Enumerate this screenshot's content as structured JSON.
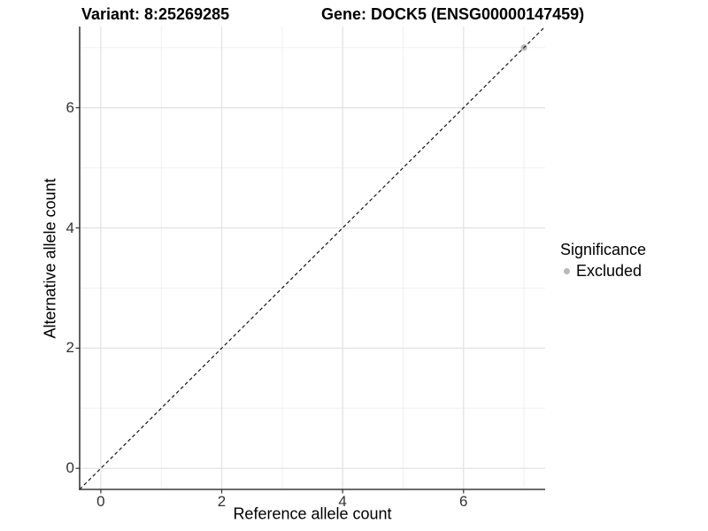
{
  "figure": {
    "kind": "scatter-plot-figure"
  },
  "chart_data": {
    "type": "scatter",
    "title_left": "Variant: 8:25269285",
    "title_right": "Gene: DOCK5 (ENSG00000147459)",
    "xlabel": "Reference allele count",
    "ylabel": "Alternative allele count",
    "xlim": [
      -0.35,
      7.35
    ],
    "ylim": [
      -0.35,
      7.35
    ],
    "x_major_ticks": [
      0,
      2,
      4,
      6
    ],
    "y_major_ticks": [
      0,
      2,
      4,
      6
    ],
    "x_minor_ticks": [
      1,
      3,
      5,
      7
    ],
    "y_minor_ticks": [
      1,
      3,
      5,
      7
    ],
    "grid": "on",
    "series": [
      {
        "name": "Excluded",
        "color": "#b8b8b8",
        "points": [
          {
            "x": 7,
            "y": 7
          }
        ]
      }
    ],
    "reference_line": {
      "style": "dashed",
      "slope": 1,
      "intercept": 0,
      "color": "#141414"
    },
    "legend": {
      "title": "Significance",
      "position": "right",
      "entries": [
        {
          "label": "Excluded",
          "color": "#b8b8b8"
        }
      ]
    },
    "style_colors": {
      "axis_line": "#3a3a3a",
      "tick_mark": "#333333",
      "tick_label": "#333333",
      "grid_major": "#e3e3e3",
      "grid_minor": "#f0f0f0",
      "panel_background": "#ffffff"
    }
  }
}
